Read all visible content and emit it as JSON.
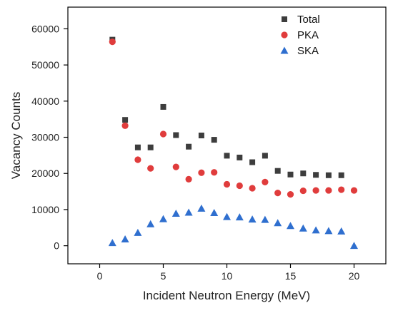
{
  "chart_data": {
    "type": "scatter",
    "title": "",
    "xlabel": "Incident Neutron Energy (MeV)",
    "ylabel": "Vacancy Counts",
    "xlim": [
      -2.5,
      22.5
    ],
    "ylim": [
      -5000,
      66000
    ],
    "xticks": [
      0,
      5,
      10,
      15,
      20
    ],
    "yticks": [
      0,
      10000,
      20000,
      30000,
      40000,
      50000,
      60000
    ],
    "grid": false,
    "legend_position": "top-right",
    "x": [
      1,
      2,
      3,
      4,
      5,
      6,
      7,
      8,
      9,
      10,
      11,
      12,
      13,
      14,
      15,
      16,
      17,
      18,
      19,
      20
    ],
    "series": [
      {
        "name": "Total",
        "marker": "square",
        "color": "#3d3d3d",
        "values": [
          57000,
          34800,
          27200,
          27200,
          38400,
          30600,
          27400,
          30500,
          29300,
          24900,
          24400,
          23100,
          24900,
          20700,
          19700,
          20000,
          19600,
          19500,
          19500,
          null
        ]
      },
      {
        "name": "PKA",
        "marker": "circle",
        "color": "#e03c3c",
        "values": [
          56400,
          33200,
          23800,
          21400,
          30900,
          21800,
          18400,
          20200,
          20300,
          17000,
          16600,
          15900,
          17600,
          14600,
          14200,
          15200,
          15300,
          15300,
          15500,
          15300
        ]
      },
      {
        "name": "SKA",
        "marker": "triangle",
        "color": "#2f6fcf",
        "values": [
          800,
          1800,
          3600,
          6000,
          7400,
          8900,
          9200,
          10300,
          9100,
          8000,
          7900,
          7300,
          7200,
          6300,
          5500,
          4800,
          4300,
          4100,
          4000,
          0
        ]
      }
    ]
  }
}
